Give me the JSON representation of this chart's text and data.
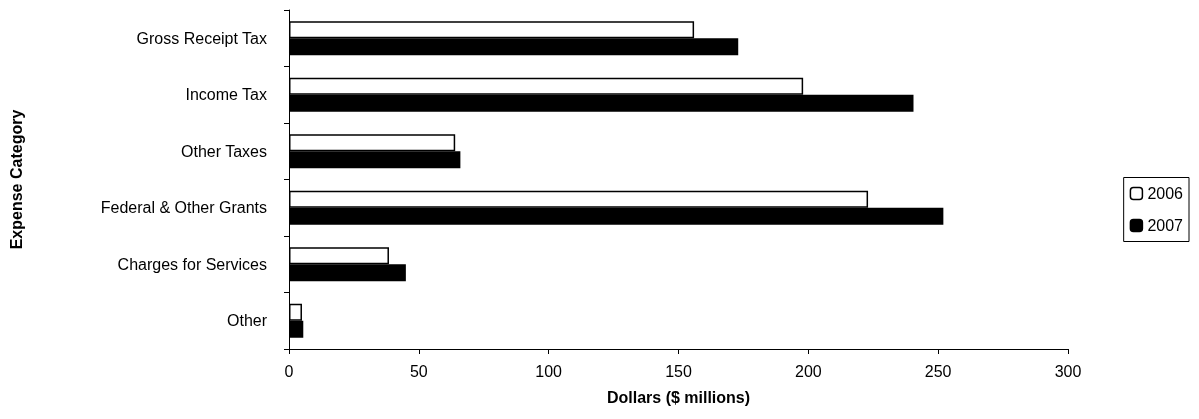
{
  "chart_data": {
    "type": "bar",
    "orientation": "horizontal",
    "xlabel": "Dollars ($ millions)",
    "ylabel": "Expense Category",
    "categories": [
      "Gross Receipt Tax",
      "Income Tax",
      "Other Taxes",
      "Federal & Other Grants",
      "Charges for Services",
      "Other"
    ],
    "series": [
      {
        "name": "2006",
        "color": "#ffffff",
        "values": [
          156,
          198,
          64,
          223,
          38.5,
          5
        ]
      },
      {
        "name": "2007",
        "color": "#000000",
        "values": [
          173,
          240.5,
          66,
          252,
          45,
          5.5
        ]
      }
    ],
    "xlim": [
      0,
      300
    ],
    "xticks": [
      0,
      50,
      100,
      150,
      200,
      250,
      300
    ],
    "grid": false,
    "legend": "right"
  }
}
